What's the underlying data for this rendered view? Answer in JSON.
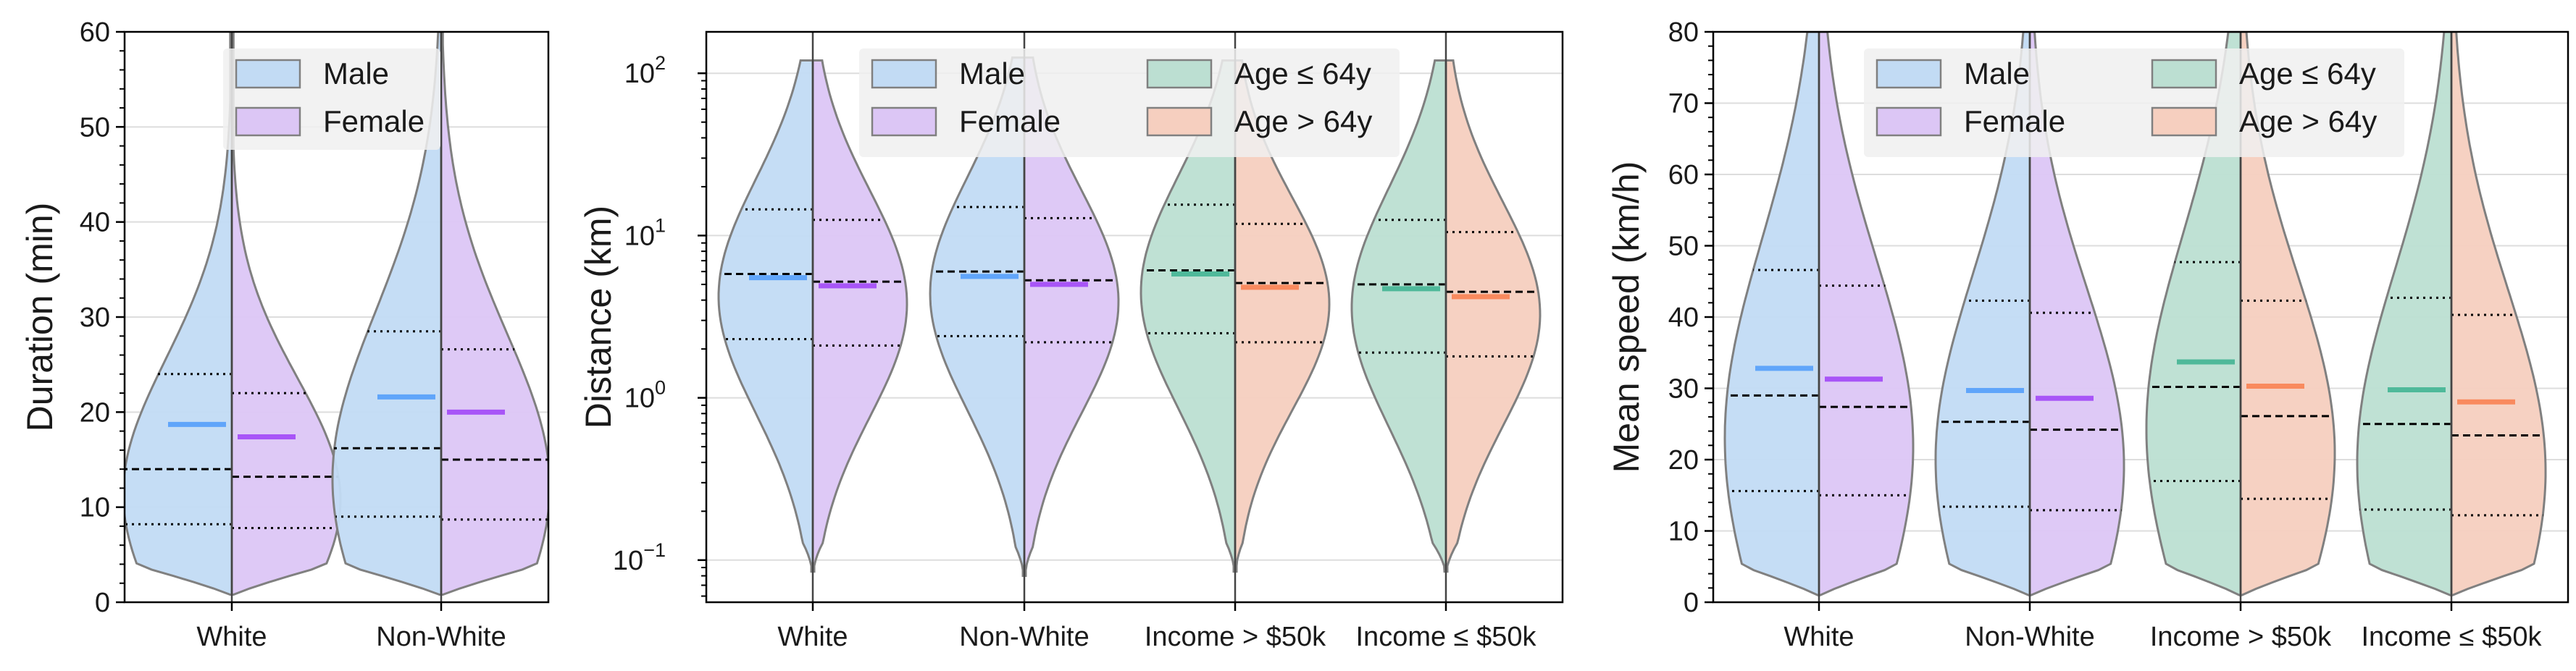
{
  "colors": {
    "male": "#60a5fa",
    "female": "#a855f7",
    "age_young": "#4fb99a",
    "age_old": "#f98a5e",
    "male_fill": "#c2dbf4",
    "female_fill": "#dcc6f5",
    "young_fill": "#bcdfd2",
    "old_fill": "#f6cfbf",
    "outline": "#808080",
    "grid": "#dddddd"
  },
  "chart_data": [
    {
      "type": "violin",
      "ylabel": "Duration (min)",
      "ylim": [
        0,
        60
      ],
      "yscale": "linear",
      "yticks": [
        0,
        10,
        20,
        30,
        40,
        50,
        60
      ],
      "ytick_labels": [
        "0",
        "10",
        "20",
        "30",
        "40",
        "50",
        "60"
      ],
      "grid": true,
      "legend_position": "top",
      "legend": [
        {
          "label": "Male",
          "series": "male"
        },
        {
          "label": "Female",
          "series": "female"
        }
      ],
      "categories": [
        "White",
        "Non-White"
      ],
      "groups": [
        {
          "category": "White",
          "left": {
            "series": "male",
            "mean": 18.7,
            "median": 14,
            "q1": 8.2,
            "q3": 24,
            "min": 0.8,
            "max": 60
          },
          "right": {
            "series": "female",
            "mean": 17.4,
            "median": 13.2,
            "q1": 7.8,
            "q3": 22,
            "min": 0.8,
            "max": 60
          }
        },
        {
          "category": "Non-White",
          "left": {
            "series": "male",
            "mean": 21.6,
            "median": 16.2,
            "q1": 9,
            "q3": 28.5,
            "min": 0.8,
            "max": 60
          },
          "right": {
            "series": "female",
            "mean": 20,
            "median": 15,
            "q1": 8.7,
            "q3": 26.6,
            "min": 0.8,
            "max": 60
          }
        }
      ]
    },
    {
      "type": "violin",
      "ylabel": "Distance (km)",
      "ylim": [
        0.055,
        180
      ],
      "yscale": "log",
      "yticks": [
        0.1,
        1,
        10,
        100
      ],
      "ytick_labels": [
        "10",
        "10",
        "10",
        "10"
      ],
      "ytick_exponents": [
        "−1",
        "0",
        "1",
        "2"
      ],
      "grid": true,
      "legend_position": "top",
      "legend": [
        {
          "label": "Male",
          "series": "male"
        },
        {
          "label": "Female",
          "series": "female"
        },
        {
          "label": "Age ≤ 64y",
          "series": "age_young"
        },
        {
          "label": "Age > 64y",
          "series": "age_old"
        }
      ],
      "categories": [
        "White",
        "Non-White",
        "Income > $50k",
        "Income ≤ $50k"
      ],
      "groups": [
        {
          "category": "White",
          "left": {
            "series": "male",
            "mean": 5.5,
            "median": 5.8,
            "q1": 2.3,
            "q3": 14.5,
            "min": 0.085,
            "max": 120
          },
          "right": {
            "series": "female",
            "mean": 4.9,
            "median": 5.2,
            "q1": 2.1,
            "q3": 12.5,
            "min": 0.085,
            "max": 120
          }
        },
        {
          "category": "Non-White",
          "left": {
            "series": "male",
            "mean": 5.6,
            "median": 6,
            "q1": 2.4,
            "q3": 15,
            "min": 0.08,
            "max": 125
          },
          "right": {
            "series": "female",
            "mean": 5,
            "median": 5.3,
            "q1": 2.2,
            "q3": 12.8,
            "min": 0.08,
            "max": 125
          }
        },
        {
          "category": "Income > $50k",
          "left": {
            "series": "age_young",
            "mean": 5.8,
            "median": 6.1,
            "q1": 2.5,
            "q3": 15.5,
            "min": 0.085,
            "max": 120
          },
          "right": {
            "series": "age_old",
            "mean": 4.8,
            "median": 5.1,
            "q1": 2.2,
            "q3": 11.8,
            "min": 0.085,
            "max": 120
          }
        },
        {
          "category": "Income ≤ $50k",
          "left": {
            "series": "age_young",
            "mean": 4.7,
            "median": 5,
            "q1": 1.9,
            "q3": 12.5,
            "min": 0.085,
            "max": 120
          },
          "right": {
            "series": "age_old",
            "mean": 4.2,
            "median": 4.5,
            "q1": 1.8,
            "q3": 10.5,
            "min": 0.085,
            "max": 120
          }
        }
      ]
    },
    {
      "type": "violin",
      "ylabel": "Mean speed (km/h)",
      "ylim": [
        0,
        80
      ],
      "yscale": "linear",
      "yticks": [
        0,
        10,
        20,
        30,
        40,
        50,
        60,
        70,
        80
      ],
      "ytick_labels": [
        "0",
        "10",
        "20",
        "30",
        "40",
        "50",
        "60",
        "70",
        "80"
      ],
      "grid": true,
      "legend_position": "top",
      "legend": [
        {
          "label": "Male",
          "series": "male"
        },
        {
          "label": "Female",
          "series": "female"
        },
        {
          "label": "Age ≤ 64y",
          "series": "age_young"
        },
        {
          "label": "Age > 64y",
          "series": "age_old"
        }
      ],
      "categories": [
        "White",
        "Non-White",
        "Income > $50k",
        "Income ≤ $50k"
      ],
      "groups": [
        {
          "category": "White",
          "left": {
            "series": "male",
            "mean": 32.8,
            "median": 29,
            "q1": 15.6,
            "q3": 46.6,
            "min": 1,
            "max": 80
          },
          "right": {
            "series": "female",
            "mean": 31.3,
            "median": 27.4,
            "q1": 15,
            "q3": 44.4,
            "min": 1,
            "max": 80
          }
        },
        {
          "category": "Non-White",
          "left": {
            "series": "male",
            "mean": 29.7,
            "median": 25.3,
            "q1": 13.4,
            "q3": 42.3,
            "min": 1,
            "max": 80
          },
          "right": {
            "series": "female",
            "mean": 28.6,
            "median": 24.2,
            "q1": 12.9,
            "q3": 40.6,
            "min": 1,
            "max": 80
          }
        },
        {
          "category": "Income > $50k",
          "left": {
            "series": "age_young",
            "mean": 33.7,
            "median": 30.2,
            "q1": 17,
            "q3": 47.7,
            "min": 1,
            "max": 80
          },
          "right": {
            "series": "age_old",
            "mean": 30.3,
            "median": 26.1,
            "q1": 14.5,
            "q3": 42.3,
            "min": 1,
            "max": 80
          }
        },
        {
          "category": "Income ≤ $50k",
          "left": {
            "series": "age_young",
            "mean": 29.8,
            "median": 25,
            "q1": 13,
            "q3": 42.7,
            "min": 1,
            "max": 80
          },
          "right": {
            "series": "age_old",
            "mean": 28.1,
            "median": 23.4,
            "q1": 12.2,
            "q3": 40.3,
            "min": 1,
            "max": 80
          }
        }
      ]
    }
  ]
}
